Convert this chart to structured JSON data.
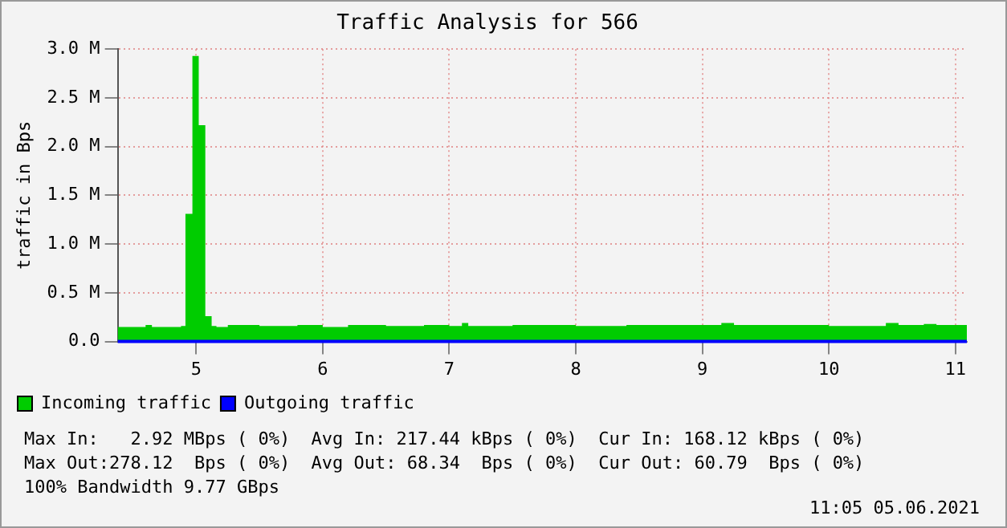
{
  "chart_data": {
    "type": "area",
    "title": "Traffic Analysis for 566",
    "ylabel": "traffic in Bps",
    "xlim": [
      4.38,
      11.09
    ],
    "xticks": [
      5,
      6,
      7,
      8,
      9,
      10,
      11
    ],
    "ylim": [
      0,
      3
    ],
    "yticks": [
      {
        "value": 0,
        "label": "0.0"
      },
      {
        "value": 0.5,
        "label": "0.5 M"
      },
      {
        "value": 1,
        "label": "1.0 M"
      },
      {
        "value": 1.5,
        "label": "1.5 M"
      },
      {
        "value": 2,
        "label": "2.0 M"
      },
      {
        "value": 2.5,
        "label": "2.5 M"
      },
      {
        "value": 3,
        "label": "3.0 M"
      }
    ],
    "grid": true,
    "legend": "bottom left",
    "marker": "none",
    "series": [
      {
        "name": "Incoming traffic",
        "color": "#00cc00",
        "x": [
          4.38,
          4.6,
          4.65,
          4.88,
          4.915,
          4.97,
          5.02,
          5.072,
          5.122,
          5.16,
          5.25,
          5.5,
          5.8,
          6.0,
          6.2,
          6.5,
          6.8,
          7.0,
          7.1,
          7.15,
          7.5,
          7.8,
          8.0,
          8.4,
          8.8,
          9.15,
          9.25,
          9.6,
          10.0,
          10.45,
          10.55,
          10.75,
          10.85,
          11.09
        ],
        "values": [
          0.15,
          0.17,
          0.15,
          0.16,
          1.31,
          2.93,
          2.22,
          0.26,
          0.16,
          0.15,
          0.17,
          0.16,
          0.17,
          0.15,
          0.17,
          0.16,
          0.17,
          0.16,
          0.19,
          0.16,
          0.17,
          0.17,
          0.16,
          0.17,
          0.17,
          0.19,
          0.17,
          0.17,
          0.16,
          0.19,
          0.17,
          0.18,
          0.17,
          0.17
        ]
      },
      {
        "name": "Outgoing traffic",
        "color": "#0000ff",
        "type": "line",
        "x": [
          4.38,
          11.09
        ],
        "values": [
          0,
          0
        ]
      }
    ],
    "annotations": [
      "Max In:   2.92 MBps ( 0%)  Avg In: 217.44 kBps ( 0%)  Cur In: 168.12 kBps ( 0%)",
      "Max Out:278.12  Bps ( 0%)  Avg Out: 68.34  Bps ( 0%)  Cur Out: 60.79  Bps ( 0%)",
      "100% Bandwidth 9.77 GBps",
      "11:05 05.06.2021"
    ]
  }
}
